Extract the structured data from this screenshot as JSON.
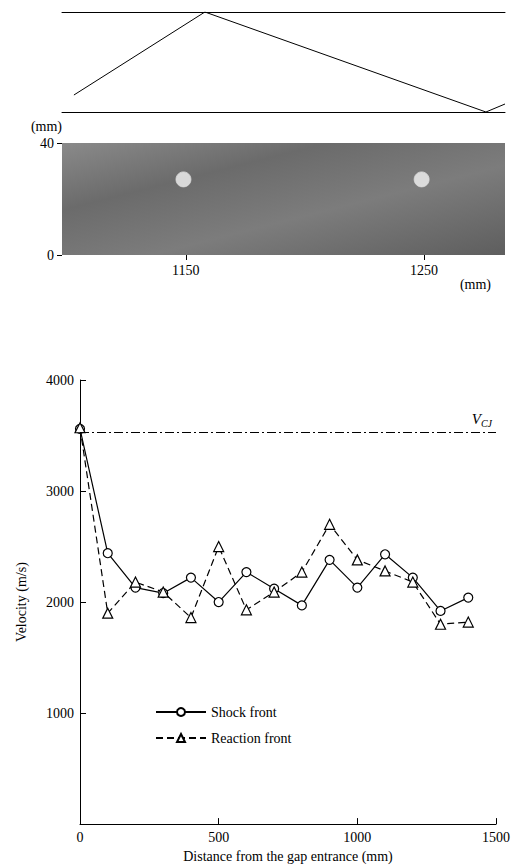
{
  "chart_data": [
    {
      "type": "line",
      "x": [
        1103,
        1158,
        1276,
        1284
      ],
      "values": [
        0.17,
        1,
        0,
        0.08
      ],
      "xlim": [
        1098,
        1284
      ],
      "ylim": [
        0,
        1
      ],
      "tick_labels": false,
      "color": "#000000"
    },
    {
      "type": "image",
      "xlim": [
        1098,
        1284
      ],
      "ylim": [
        0,
        40
      ],
      "xticks": [
        1150,
        1250
      ],
      "yticks": [
        0,
        40
      ],
      "x_label": "(mm)",
      "y_label": "(mm)",
      "color": "#6b6b6b",
      "holes": {
        "x": [
          1149,
          1249
        ],
        "y": [
          27,
          27
        ]
      }
    },
    {
      "type": "line",
      "x_label": "Distance from the gap entrance (mm)",
      "y_label": "Velocity (m/s)",
      "x": [
        0,
        100,
        200,
        300,
        400,
        500,
        600,
        700,
        800,
        900,
        1000,
        1100,
        1200,
        1300,
        1400
      ],
      "series": [
        {
          "name": "Shock front",
          "color": "#000000",
          "marker": "circle",
          "line_style": "solid",
          "values": [
            3560,
            2440,
            2130,
            2080,
            2220,
            2000,
            2270,
            2120,
            1970,
            2380,
            2130,
            2430,
            2220,
            1920,
            2040
          ]
        },
        {
          "name": "Reaction front",
          "color": "#000000",
          "marker": "triangle",
          "line_style": "dashed",
          "values": [
            3570,
            1900,
            2180,
            2090,
            1860,
            2500,
            1930,
            2090,
            2270,
            2700,
            2380,
            2280,
            2180,
            1800,
            1820
          ]
        }
      ],
      "xlim": [
        0,
        1500
      ],
      "xticks": [
        0,
        500,
        1000,
        1500
      ],
      "ylim": [
        0,
        4000
      ],
      "yticks": [
        1000,
        2000,
        3000,
        4000
      ],
      "grid": false,
      "legend": "bottom",
      "reference_lines": [
        {
          "value": 3530,
          "label": "V",
          "subscript": "CJ"
        }
      ]
    }
  ]
}
